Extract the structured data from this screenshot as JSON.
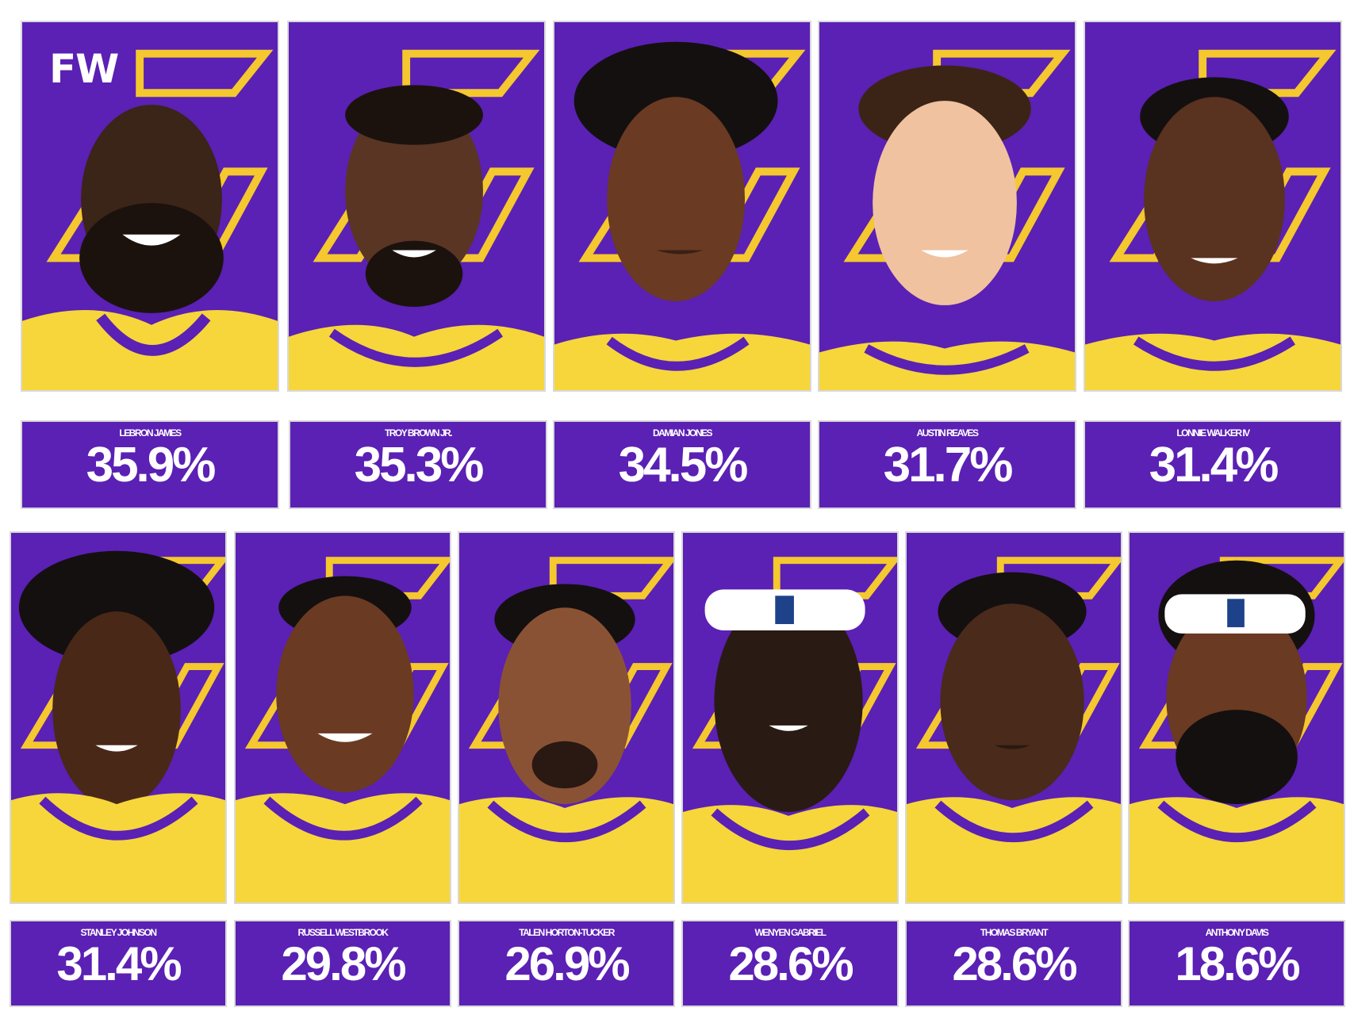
{
  "brand": {
    "logo_text": "FW"
  },
  "colors": {
    "purple": "#5b20b4",
    "gold": "#f4c82e",
    "jersey": "#f6d63a"
  },
  "players": [
    {
      "name": "LEBRON JAMES",
      "pct": "35.9%"
    },
    {
      "name": "TROY BROWN JR.",
      "pct": "35.3%"
    },
    {
      "name": "DAMIAN JONES",
      "pct": "34.5%"
    },
    {
      "name": "AUSTIN REAVES",
      "pct": "31.7%"
    },
    {
      "name": "LONNIE WALKER IV",
      "pct": "31.4%"
    },
    {
      "name": "STANLEY JOHNSON",
      "pct": "31.4%"
    },
    {
      "name": "RUSSELL WESTBROOK",
      "pct": "29.8%"
    },
    {
      "name": "TALEN HORTON-TUCKER",
      "pct": "26.9%"
    },
    {
      "name": "WENYEN GABRIEL",
      "pct": "28.6%"
    },
    {
      "name": "THOMAS BRYANT",
      "pct": "28.6%"
    },
    {
      "name": "ANTHONY DAVIS",
      "pct": "18.6%"
    }
  ],
  "icons": {
    "portrait": "player-portrait-icon",
    "team_logo": "lakers-logo-icon",
    "headband": "headband-icon"
  }
}
